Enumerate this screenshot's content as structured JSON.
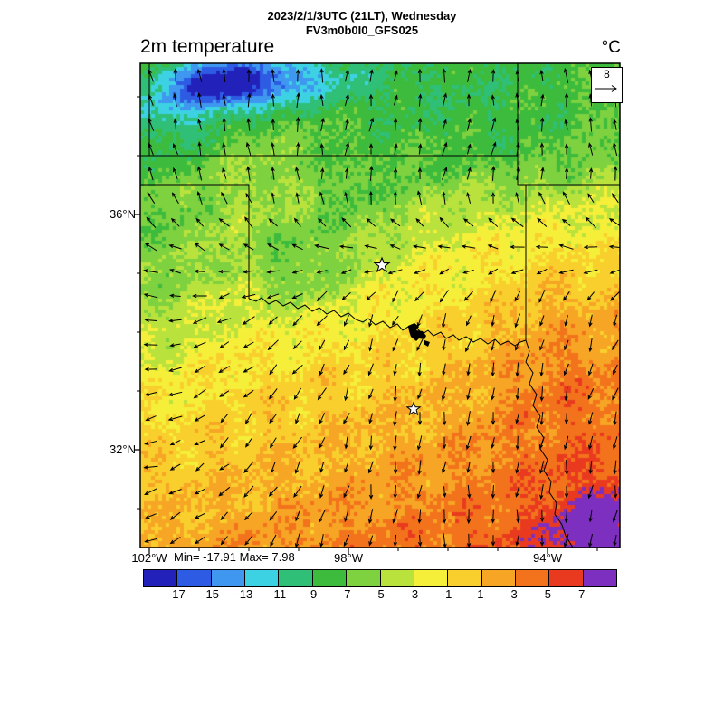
{
  "header": {
    "datetime_line": "2023/2/1/3UTC (21LT), Wednesday",
    "model_line": "FV3m0b0I0_GFS025",
    "variable_title": "2m temperature",
    "units_label": "°C"
  },
  "map_annotations": {
    "lat_labels": [
      "36°N",
      "32°N"
    ],
    "lon_labels": [
      "102°W",
      "98°W",
      "94°W"
    ],
    "stats_line": "Min= -17.91 Max= 7.98",
    "wind_reference_value": "8"
  },
  "chart_data": {
    "type": "heatmap",
    "title": "2m temperature",
    "units": "°C",
    "valid_time": "2023/2/1/3UTC (21LT), Wednesday",
    "model_run": "FV3m0b0I0_GFS025",
    "field_min": -17.91,
    "field_max": 7.98,
    "wind_reference_ms": 8,
    "overlay": "10m wind vectors",
    "lat_tick_labels": [
      "36°N",
      "32°N"
    ],
    "lon_tick_labels": [
      "102°W",
      "98°W",
      "94°W"
    ],
    "colorbar_ticks": [
      -17,
      -15,
      -13,
      -11,
      -9,
      -7,
      -5,
      -3,
      -1,
      1,
      3,
      5,
      7
    ],
    "colorbar_colors": [
      "#2222bb",
      "#2e5be4",
      "#3f97ef",
      "#3cd2e3",
      "#2fbf77",
      "#3cbb3c",
      "#7ed13f",
      "#b9e23c",
      "#f5ef39",
      "#f8cf2c",
      "#f7a525",
      "#f2731b",
      "#e93a20",
      "#7d2fbf"
    ],
    "legend_position": "bottom",
    "grid": false
  }
}
